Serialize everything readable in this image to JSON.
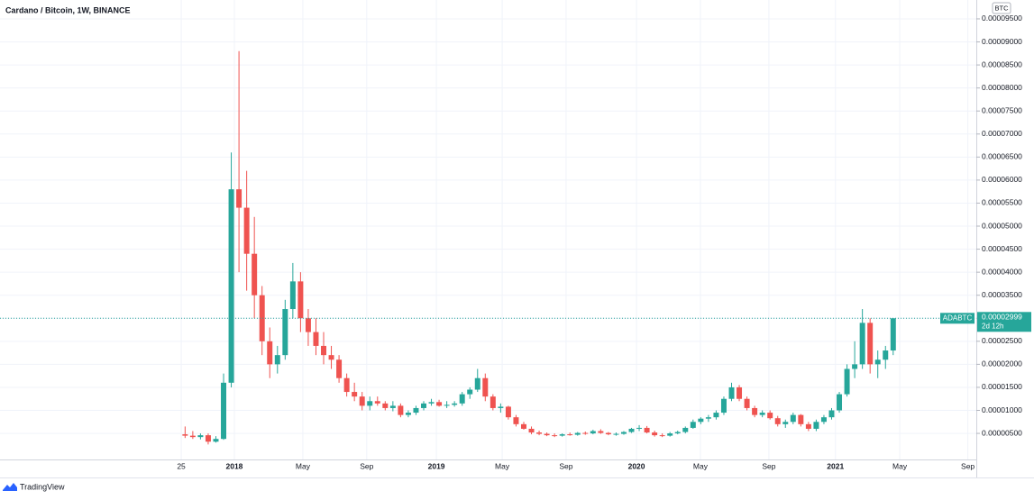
{
  "chart_data": {
    "type": "candlestick",
    "title": "Cardano / Bitcoin, 1W, BINANCE",
    "y_unit": "BTC",
    "symbol": "ADABTC",
    "last_price_label": "0.00002999",
    "countdown": "2d 12h",
    "brand": "TradingView",
    "grid": true,
    "up_color": "#26a69a",
    "down_color": "#ef5350",
    "xlim": [
      -47.1,
      206.6
    ],
    "ylim": [
      -6.6e-07,
      9.91e-05
    ],
    "xticks": [
      {
        "value": 0,
        "label": "25"
      },
      {
        "value": 13.8,
        "label": "2018"
      },
      {
        "value": 31.6,
        "label": "May"
      },
      {
        "value": 48.2,
        "label": "Sep"
      },
      {
        "value": 66.3,
        "label": "2019"
      },
      {
        "value": 83.4,
        "label": "May"
      },
      {
        "value": 100,
        "label": "Sep"
      },
      {
        "value": 118.3,
        "label": "2020"
      },
      {
        "value": 134.9,
        "label": "May"
      },
      {
        "value": 152.7,
        "label": "Sep"
      },
      {
        "value": 170,
        "label": "2021"
      },
      {
        "value": 186.7,
        "label": "May"
      },
      {
        "value": 204.4,
        "label": "Sep"
      }
    ],
    "yticks": [
      {
        "value": 5e-06,
        "label": "0.00000500"
      },
      {
        "value": 1e-05,
        "label": "0.00001000"
      },
      {
        "value": 1.5e-05,
        "label": "0.00001500"
      },
      {
        "value": 2e-05,
        "label": "0.00002000"
      },
      {
        "value": 2.5e-05,
        "label": "0.00002500"
      },
      {
        "value": 3e-05,
        "label": "0.00003000"
      },
      {
        "value": 3.5e-05,
        "label": "0.00003500"
      },
      {
        "value": 4e-05,
        "label": "0.00004000"
      },
      {
        "value": 4.5e-05,
        "label": "0.00004500"
      },
      {
        "value": 5e-05,
        "label": "0.00005000"
      },
      {
        "value": 5.5e-05,
        "label": "0.00005500"
      },
      {
        "value": 6e-05,
        "label": "0.00006000"
      },
      {
        "value": 6.5e-05,
        "label": "0.00006500"
      },
      {
        "value": 7e-05,
        "label": "0.00007000"
      },
      {
        "value": 7.5e-05,
        "label": "0.00007500"
      },
      {
        "value": 8e-05,
        "label": "0.00008000"
      },
      {
        "value": 8.5e-05,
        "label": "0.00008500"
      },
      {
        "value": 9e-05,
        "label": "0.00009000"
      },
      {
        "value": 9.5e-05,
        "label": "0.00009500"
      }
    ],
    "x": [
      1,
      3,
      5,
      7,
      9,
      11,
      13,
      15,
      17,
      19,
      21,
      23,
      25,
      27,
      29,
      31,
      33,
      35,
      37,
      39,
      41,
      43,
      45,
      47,
      49,
      51,
      53,
      55,
      57,
      59,
      61,
      63,
      65,
      67,
      69,
      71,
      73,
      75,
      77,
      79,
      81,
      83,
      85,
      87,
      89,
      91,
      93,
      95,
      97,
      99,
      101,
      103,
      105,
      107,
      109,
      111,
      113,
      115,
      117,
      119,
      121,
      123,
      125,
      127,
      129,
      131,
      133,
      135,
      137,
      139,
      141,
      143,
      145,
      147,
      149,
      151,
      153,
      155,
      157,
      159,
      161,
      163,
      165,
      167,
      169,
      171,
      173,
      175,
      177,
      179,
      181,
      183,
      185
    ],
    "open": [
      4.8e-06,
      4.5e-06,
      4.2e-06,
      4.6e-06,
      3.2e-06,
      3.8e-06,
      1.6e-05,
      5.8e-05,
      5.4e-05,
      4.4e-05,
      3.5e-05,
      2.5e-05,
      2e-05,
      2.2e-05,
      3.2e-05,
      3.8e-05,
      3e-05,
      2.7e-05,
      2.4e-05,
      2.2e-05,
      2.1e-05,
      1.7e-05,
      1.4e-05,
      1.3e-05,
      1.1e-05,
      1.2e-05,
      1.15e-05,
      1.05e-05,
      1.1e-05,
      9e-06,
      9.5e-06,
      1.05e-05,
      1.15e-05,
      1.18e-05,
      1.1e-05,
      1.12e-05,
      1.15e-05,
      1.35e-05,
      1.45e-05,
      1.7e-05,
      1.3e-05,
      1.05e-05,
      1.08e-05,
      8.5e-06,
      7e-06,
      6e-06,
      5.2e-06,
      4.9e-06,
      4.6e-06,
      4.5e-06,
      4.8e-06,
      4.7e-06,
      5.1e-06,
      5e-06,
      5.5e-06,
      5.1e-06,
      4.8e-06,
      4.9e-06,
      5.3e-06,
      6e-06,
      6.2e-06,
      5.2e-06,
      4.6e-06,
      4.5e-06,
      5e-06,
      5.3e-06,
      6.2e-06,
      7.5e-06,
      8.2e-06,
      8.5e-06,
      9.5e-06,
      1.25e-05,
      1.5e-05,
      1.25e-05,
      1.05e-05,
      9e-06,
      9.5e-06,
      8.3e-06,
      7e-06,
      7.5e-06,
      9e-06,
      7e-06,
      6e-06,
      7.5e-06,
      8.5e-06,
      1e-05,
      1.35e-05,
      1.9e-05,
      2e-05,
      2.9e-05,
      2e-05,
      2.1e-05,
      2.3e-05
    ],
    "high": [
      6.5e-06,
      5.5e-06,
      5e-06,
      5e-06,
      4.4e-06,
      1.8e-05,
      6.6e-05,
      8.8e-05,
      6.2e-05,
      5.2e-05,
      3.7e-05,
      2.8e-05,
      2.4e-05,
      3.4e-05,
      4.2e-05,
      4e-05,
      3.2e-05,
      3e-05,
      2.7e-05,
      2.4e-05,
      2.2e-05,
      1.8e-05,
      1.6e-05,
      1.4e-05,
      1.3e-05,
      1.3e-05,
      1.2e-05,
      1.2e-05,
      1.15e-05,
      1e-05,
      1.1e-05,
      1.2e-05,
      1.25e-05,
      1.23e-05,
      1.2e-05,
      1.2e-05,
      1.4e-05,
      1.5e-05,
      1.9e-05,
      1.8e-05,
      1.35e-05,
      1.15e-05,
      1.1e-05,
      9e-06,
      7.5e-06,
      6.5e-06,
      5.6e-06,
      5.2e-06,
      5e-06,
      5e-06,
      5.2e-06,
      5.3e-06,
      5.4e-06,
      5.8e-06,
      5.9e-06,
      5.3e-06,
      5.2e-06,
      5.5e-06,
      6.2e-06,
      6.8e-06,
      6.6e-06,
      5.6e-06,
      5e-06,
      5.3e-06,
      5.6e-06,
      6.5e-06,
      8e-06,
      8.5e-06,
      9e-06,
      1e-05,
      1.3e-05,
      1.6e-05,
      1.55e-05,
      1.3e-05,
      1.1e-05,
      1e-05,
      1e-05,
      8.8e-06,
      8e-06,
      9.5e-06,
      9.2e-06,
      7.5e-06,
      8e-06,
      9e-06,
      1.05e-05,
      1.4e-05,
      2e-05,
      2.5e-05,
      3.2e-05,
      3e-05,
      2.3e-05,
      2.4e-05,
      3e-05
    ],
    "low": [
      4e-06,
      3.8e-06,
      3.7e-06,
      2.6e-06,
      3e-06,
      3.6e-06,
      1.5e-05,
      4e-05,
      3.6e-05,
      3e-05,
      2.2e-05,
      1.7e-05,
      1.8e-05,
      2.1e-05,
      3e-05,
      2.7e-05,
      2.4e-05,
      2.2e-05,
      2e-05,
      1.9e-05,
      1.6e-05,
      1.3e-05,
      1.2e-05,
      1e-05,
      1e-05,
      1.1e-05,
      1e-05,
      9.8e-06,
      8.5e-06,
      8.5e-06,
      9e-06,
      1e-05,
      1.1e-05,
      1.08e-05,
      1.05e-05,
      1.08e-05,
      1.1e-05,
      1.25e-05,
      1.4e-05,
      1.2e-05,
      1e-05,
      9.5e-06,
      8e-06,
      6.5e-06,
      5.8e-06,
      4.8e-06,
      4.6e-06,
      4.4e-06,
      4.2e-06,
      4.3e-06,
      4.5e-06,
      4.5e-06,
      4.7e-06,
      4.8e-06,
      4.9e-06,
      4.6e-06,
      4.5e-06,
      4.7e-06,
      5.1e-06,
      5.5e-06,
      5e-06,
      4.3e-06,
      4.2e-06,
      4.3e-06,
      4.8e-06,
      5e-06,
      6e-06,
      7e-06,
      7.5e-06,
      8e-06,
      9e-06,
      1.2e-05,
      1.2e-05,
      1e-05,
      8.5e-06,
      8.5e-06,
      8e-06,
      6.5e-06,
      6.2e-06,
      7e-06,
      6.5e-06,
      5.5e-06,
      5.5e-06,
      7e-06,
      8e-06,
      9.5e-06,
      1.3e-05,
      1.7e-05,
      1.9e-05,
      1.8e-05,
      1.7e-05,
      1.9e-05,
      2.2e-05
    ],
    "close": [
      4.5e-06,
      4.2e-06,
      4.6e-06,
      3.2e-06,
      3.8e-06,
      1.6e-05,
      5.8e-05,
      5.4e-05,
      4.4e-05,
      3.5e-05,
      2.5e-05,
      2e-05,
      2.2e-05,
      3.2e-05,
      3.8e-05,
      3e-05,
      2.7e-05,
      2.4e-05,
      2.2e-05,
      2.1e-05,
      1.7e-05,
      1.4e-05,
      1.3e-05,
      1.1e-05,
      1.2e-05,
      1.15e-05,
      1.05e-05,
      1.1e-05,
      9e-06,
      9.5e-06,
      1.05e-05,
      1.15e-05,
      1.18e-05,
      1.1e-05,
      1.12e-05,
      1.15e-05,
      1.35e-05,
      1.45e-05,
      1.7e-05,
      1.3e-05,
      1.05e-05,
      1.08e-05,
      8.5e-06,
      7e-06,
      6e-06,
      5.2e-06,
      4.9e-06,
      4.6e-06,
      4.5e-06,
      4.8e-06,
      4.7e-06,
      5.1e-06,
      5e-06,
      5.5e-06,
      5.1e-06,
      4.8e-06,
      4.9e-06,
      5.3e-06,
      6e-06,
      6.2e-06,
      5.2e-06,
      4.6e-06,
      4.5e-06,
      5e-06,
      5.3e-06,
      6.2e-06,
      7.5e-06,
      8.2e-06,
      8.5e-06,
      9.5e-06,
      1.25e-05,
      1.5e-05,
      1.25e-05,
      1.05e-05,
      9e-06,
      9.5e-06,
      8.3e-06,
      7e-06,
      7.5e-06,
      9e-06,
      7e-06,
      6e-06,
      7.5e-06,
      8.5e-06,
      1e-05,
      1.35e-05,
      1.9e-05,
      2e-05,
      2.9e-05,
      2e-05,
      2.1e-05,
      2.3e-05,
      2.999e-05
    ]
  }
}
